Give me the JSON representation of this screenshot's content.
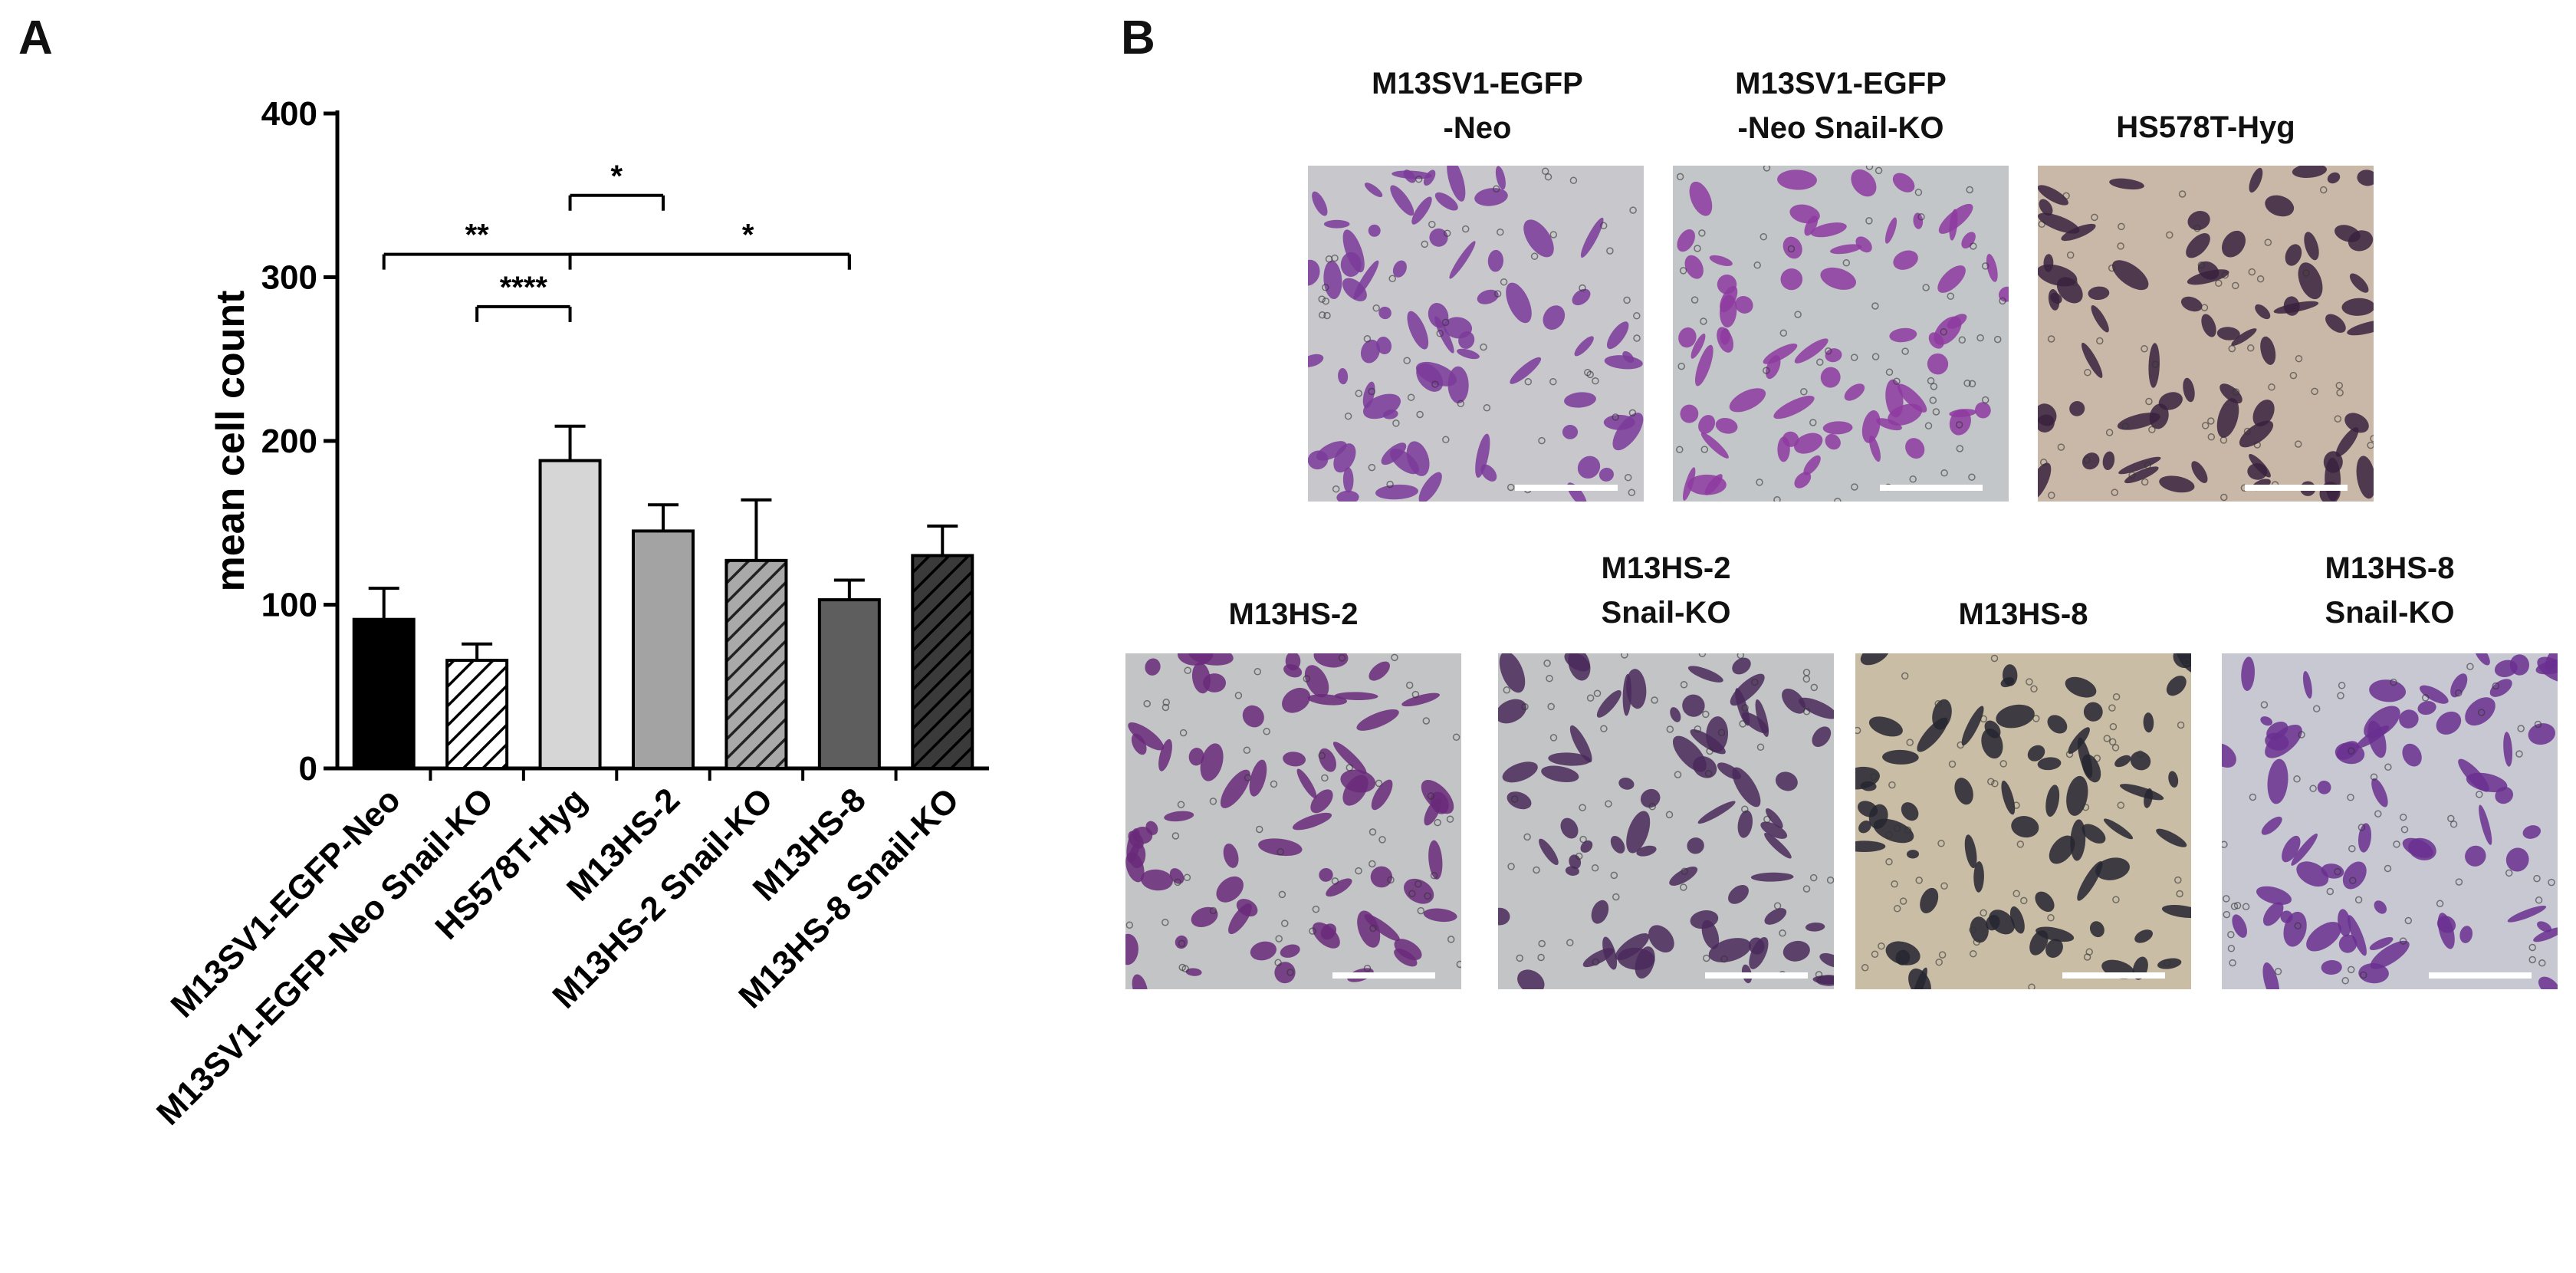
{
  "panels": {
    "a_letter": "A",
    "b_letter": "B"
  },
  "chart_data": {
    "type": "bar",
    "title": "",
    "xlabel": "",
    "ylabel": "mean cell count",
    "ylim": [
      0,
      400
    ],
    "yticks": [
      "0",
      "100",
      "200",
      "300",
      "400"
    ],
    "grid": false,
    "categories": [
      "M13SV1-EGFP-Neo",
      "M13SV1-EGFP-Neo Snail-KO",
      "HS578T-Hyg",
      "M13HS-2",
      "M13HS-2 Snail-KO",
      "M13HS-8",
      "M13HS-8 Snail-KO"
    ],
    "values": [
      91,
      66,
      188,
      145,
      127,
      103,
      130
    ],
    "errors": [
      19,
      10,
      21,
      16,
      37,
      12,
      18
    ],
    "bar_fills": [
      "#000000",
      "hatch-white",
      "#d6d6d6",
      "#a3a3a3",
      "hatch-gray",
      "#5e5e5e",
      "hatch-dark"
    ],
    "significance": [
      {
        "from": 2,
        "to": 3,
        "label": "*"
      },
      {
        "from": 0,
        "to": 5,
        "label": "**"
      },
      {
        "from": 2,
        "to": 5,
        "label": "*"
      },
      {
        "from": 1,
        "to": 2,
        "label": "****"
      }
    ]
  },
  "micrographs": [
    {
      "label": "M13SV1-EGFP\n-Neo",
      "bg": "#c8c8cc",
      "cell": "#7a3a9a",
      "scale_bar": true
    },
    {
      "label": "M13SV1-EGFP\n-Neo Snail-KO",
      "bg": "#c3c6c8",
      "cell": "#8e3aa0",
      "scale_bar": true
    },
    {
      "label": "HS578T-Hyg",
      "bg": "#c9b8a8",
      "cell": "#3a2240",
      "scale_bar": true
    },
    {
      "label": "M13HS-2",
      "bg": "#c3c4c6",
      "cell": "#6a2a7a",
      "scale_bar": true
    },
    {
      "label": "M13HS-2\nSnail-KO",
      "bg": "#c2c4c5",
      "cell": "#4a2a5a",
      "scale_bar": true
    },
    {
      "label": "M13HS-8",
      "bg": "#c9bda6",
      "cell": "#262630",
      "scale_bar": true
    },
    {
      "label": "M13HS-8\nSnail-KO",
      "bg": "#c7c8d2",
      "cell": "#6a3090",
      "scale_bar": true
    }
  ]
}
